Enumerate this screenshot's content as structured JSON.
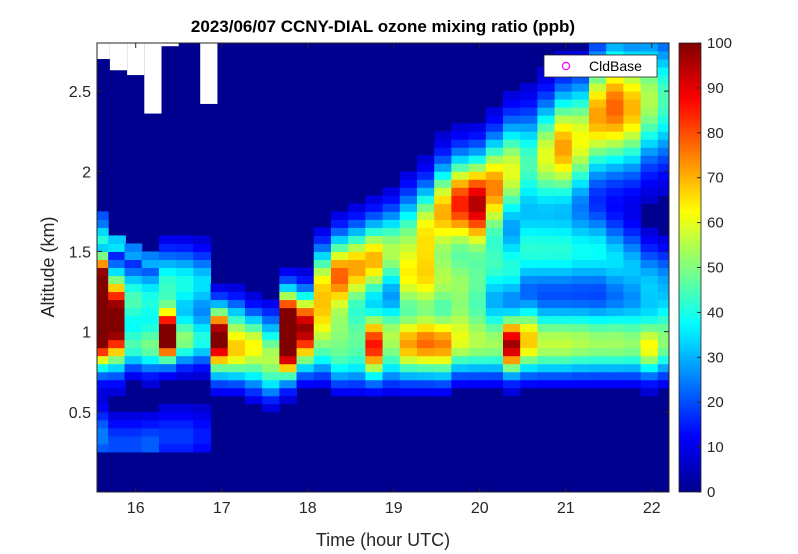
{
  "chart_data": {
    "type": "heatmap",
    "title": "2023/06/07 CCNY-DIAL ozone mixing ratio (ppb)",
    "xlabel": "Time (hour UTC)",
    "ylabel": "Altitude (km)",
    "xlim": [
      15.55,
      22.2
    ],
    "ylim": [
      0,
      2.8
    ],
    "xticks": [
      16,
      17,
      18,
      19,
      20,
      21,
      22
    ],
    "yticks": [
      0.5,
      1,
      1.5,
      2,
      2.5
    ],
    "colorbar": {
      "min": 0,
      "max": 100,
      "ticks": [
        0,
        10,
        20,
        30,
        40,
        50,
        60,
        70,
        80,
        90,
        100
      ],
      "colormap": "jet"
    },
    "legend": {
      "entries": [
        "CldBase"
      ],
      "marker": "circle",
      "marker_color": "#ff00ff",
      "position": "top-right"
    },
    "background_value": 5,
    "columns": [
      {
        "t": 15.58,
        "profile": [
          [
            0.35,
            1.05,
            25
          ],
          [
            0.9,
            1.0,
            40
          ],
          [
            1.0,
            1.2,
            60
          ],
          [
            1.2,
            1.4,
            70
          ],
          [
            1.3,
            1.3,
            72
          ],
          [
            1.6,
            0.18,
            35
          ],
          [
            1.7,
            0.12,
            28
          ]
        ]
      },
      {
        "t": 15.78,
        "profile": [
          [
            0.3,
            1.0,
            20
          ],
          [
            0.9,
            1.1,
            45
          ],
          [
            1.05,
            1.1,
            55
          ],
          [
            1.2,
            1.3,
            65
          ],
          [
            1.55,
            0.15,
            42
          ]
        ]
      },
      {
        "t": 15.97,
        "profile": [
          [
            0.3,
            1.0,
            20
          ],
          [
            0.9,
            0.8,
            40
          ],
          [
            1.2,
            1.3,
            45
          ],
          [
            1.5,
            0.12,
            32
          ]
        ]
      },
      {
        "t": 16.17,
        "profile": [
          [
            0.3,
            1.0,
            22
          ],
          [
            0.9,
            0.9,
            45
          ],
          [
            1.2,
            1.3,
            40
          ],
          [
            1.45,
            0.1,
            30
          ]
        ]
      },
      {
        "t": 16.37,
        "profile": [
          [
            0.35,
            1.0,
            18
          ],
          [
            0.95,
            0.9,
            62
          ],
          [
            1.0,
            0.9,
            60
          ],
          [
            1.3,
            1.3,
            42
          ]
        ]
      },
      {
        "t": 16.57,
        "profile": [
          [
            0.35,
            1.0,
            18
          ],
          [
            0.95,
            0.9,
            50
          ],
          [
            1.3,
            1.3,
            40
          ]
        ]
      },
      {
        "t": 16.77,
        "profile": [
          [
            0.35,
            1.0,
            15
          ],
          [
            0.95,
            0.9,
            40
          ],
          [
            1.3,
            1.2,
            35
          ]
        ]
      },
      {
        "t": 16.97,
        "profile": [
          [
            0.8,
            0.9,
            30
          ],
          [
            0.95,
            0.9,
            75
          ],
          [
            1.05,
            1.0,
            40
          ]
        ]
      },
      {
        "t": 17.17,
        "profile": [
          [
            0.8,
            0.9,
            30
          ],
          [
            0.9,
            0.9,
            40
          ],
          [
            1.05,
            1.0,
            35
          ]
        ]
      },
      {
        "t": 17.37,
        "profile": [
          [
            0.75,
            0.9,
            28
          ],
          [
            0.9,
            0.9,
            38
          ],
          [
            1.0,
            1.0,
            30
          ]
        ]
      },
      {
        "t": 17.57,
        "profile": [
          [
            0.7,
            0.8,
            30
          ],
          [
            0.85,
            0.8,
            40
          ],
          [
            1.0,
            1.0,
            25
          ]
        ]
      },
      {
        "t": 17.77,
        "profile": [
          [
            0.8,
            0.9,
            40
          ],
          [
            0.95,
            1.0,
            90
          ],
          [
            1.1,
            1.1,
            80
          ]
        ]
      },
      {
        "t": 17.97,
        "profile": [
          [
            0.85,
            0.9,
            32
          ],
          [
            1.0,
            1.0,
            55
          ],
          [
            1.1,
            1.1,
            50
          ]
        ]
      },
      {
        "t": 18.17,
        "profile": [
          [
            0.85,
            0.9,
            30
          ],
          [
            1.05,
            1.1,
            45
          ],
          [
            1.3,
            1.4,
            60
          ]
        ]
      },
      {
        "t": 18.37,
        "profile": [
          [
            0.8,
            0.9,
            32
          ],
          [
            1.0,
            1.1,
            40
          ],
          [
            1.35,
            1.5,
            78
          ]
        ]
      },
      {
        "t": 18.57,
        "profile": [
          [
            0.8,
            0.9,
            30
          ],
          [
            1.0,
            1.1,
            40
          ],
          [
            1.4,
            1.5,
            72
          ]
        ]
      },
      {
        "t": 18.77,
        "profile": [
          [
            0.8,
            0.9,
            30
          ],
          [
            0.95,
            1.1,
            75
          ],
          [
            1.45,
            1.5,
            70
          ]
        ]
      },
      {
        "t": 18.97,
        "profile": [
          [
            0.8,
            0.9,
            28
          ],
          [
            1.0,
            1.1,
            50
          ],
          [
            1.5,
            1.6,
            55
          ]
        ]
      },
      {
        "t": 19.17,
        "profile": [
          [
            0.8,
            0.9,
            28
          ],
          [
            0.95,
            1.0,
            60
          ],
          [
            1.3,
            1.4,
            50
          ],
          [
            1.6,
            1.7,
            45
          ]
        ]
      },
      {
        "t": 19.37,
        "profile": [
          [
            0.8,
            0.9,
            28
          ],
          [
            0.95,
            1.0,
            65
          ],
          [
            1.3,
            1.4,
            55
          ],
          [
            1.65,
            1.7,
            60
          ]
        ]
      },
      {
        "t": 19.57,
        "profile": [
          [
            0.8,
            0.9,
            30
          ],
          [
            0.95,
            1.0,
            62
          ],
          [
            1.3,
            1.4,
            50
          ],
          [
            1.75,
            1.8,
            70
          ]
        ]
      },
      {
        "t": 19.77,
        "profile": [
          [
            0.85,
            0.9,
            30
          ],
          [
            1.0,
            1.1,
            45
          ],
          [
            1.3,
            1.4,
            48
          ],
          [
            1.8,
            1.8,
            85
          ]
        ]
      },
      {
        "t": 19.97,
        "profile": [
          [
            0.85,
            0.9,
            30
          ],
          [
            1.0,
            1.1,
            40
          ],
          [
            1.3,
            1.4,
            42
          ],
          [
            1.8,
            1.85,
            95
          ]
        ]
      },
      {
        "t": 20.17,
        "profile": [
          [
            0.85,
            0.9,
            30
          ],
          [
            1.0,
            1.1,
            40
          ],
          [
            1.4,
            1.4,
            40
          ],
          [
            1.9,
            1.9,
            75
          ]
        ]
      },
      {
        "t": 20.37,
        "profile": [
          [
            0.85,
            0.9,
            35
          ],
          [
            0.95,
            1.0,
            75
          ],
          [
            1.4,
            1.4,
            40
          ],
          [
            2.0,
            2.0,
            60
          ]
        ]
      },
      {
        "t": 20.57,
        "profile": [
          [
            0.85,
            0.9,
            32
          ],
          [
            1.0,
            1.1,
            55
          ],
          [
            1.5,
            1.5,
            40
          ],
          [
            2.05,
            2.05,
            45
          ]
        ]
      },
      {
        "t": 20.77,
        "profile": [
          [
            0.85,
            0.9,
            32
          ],
          [
            1.0,
            1.1,
            42
          ],
          [
            1.5,
            1.5,
            40
          ],
          [
            2.1,
            2.1,
            60
          ]
        ]
      },
      {
        "t": 20.97,
        "profile": [
          [
            0.85,
            0.9,
            32
          ],
          [
            1.0,
            1.1,
            42
          ],
          [
            1.5,
            1.5,
            40
          ],
          [
            2.15,
            2.2,
            72
          ]
        ]
      },
      {
        "t": 21.17,
        "profile": [
          [
            0.85,
            0.9,
            30
          ],
          [
            1.0,
            1.1,
            42
          ],
          [
            1.5,
            1.5,
            38
          ],
          [
            2.2,
            2.25,
            62
          ]
        ]
      },
      {
        "t": 21.37,
        "profile": [
          [
            0.85,
            0.9,
            30
          ],
          [
            1.0,
            1.1,
            40
          ],
          [
            1.5,
            1.5,
            38
          ],
          [
            2.35,
            2.35,
            72
          ]
        ]
      },
      {
        "t": 21.57,
        "profile": [
          [
            0.85,
            0.9,
            30
          ],
          [
            1.0,
            1.1,
            40
          ],
          [
            1.45,
            1.5,
            35
          ],
          [
            2.4,
            2.45,
            78
          ]
        ]
      },
      {
        "t": 21.77,
        "profile": [
          [
            0.85,
            0.9,
            30
          ],
          [
            1.0,
            1.1,
            38
          ],
          [
            1.4,
            1.5,
            32
          ],
          [
            2.4,
            2.45,
            70
          ]
        ]
      },
      {
        "t": 21.97,
        "profile": [
          [
            0.85,
            0.9,
            30
          ],
          [
            0.95,
            1.1,
            42
          ],
          [
            1.3,
            1.5,
            32
          ],
          [
            2.45,
            2.5,
            55
          ]
        ]
      },
      {
        "t": 22.17,
        "profile": [
          [
            0.85,
            0.9,
            28
          ],
          [
            1.0,
            1.1,
            38
          ],
          [
            1.3,
            1.4,
            28
          ],
          [
            2.45,
            2.5,
            45
          ]
        ]
      }
    ],
    "missing_data_gaps": [
      {
        "t0": 15.55,
        "t1": 15.7,
        "alt0": 2.7,
        "alt1": 2.8
      },
      {
        "t0": 15.7,
        "t1": 15.9,
        "alt0": 2.63,
        "alt1": 2.8
      },
      {
        "t0": 15.9,
        "t1": 16.1,
        "alt0": 2.6,
        "alt1": 2.8
      },
      {
        "t0": 16.1,
        "t1": 16.3,
        "alt0": 2.36,
        "alt1": 2.8
      },
      {
        "t0": 16.3,
        "t1": 16.5,
        "alt0": 2.78,
        "alt1": 2.8
      },
      {
        "t0": 16.75,
        "t1": 16.95,
        "alt0": 2.42,
        "alt1": 2.8
      }
    ]
  }
}
